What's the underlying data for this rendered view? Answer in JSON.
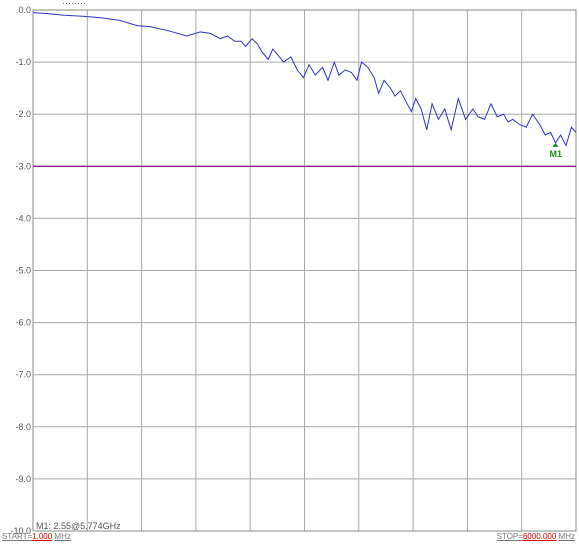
{
  "chart_data": {
    "type": "line",
    "title": "",
    "xlabel": "",
    "ylabel": "",
    "x_range_mhz": [
      1.0,
      6000.0
    ],
    "ylim": [
      -10.0,
      0.0
    ],
    "y_ticks": [
      "0.0",
      "-1.0",
      "-2.0",
      "-3.0",
      "-4.0",
      "-5.0",
      "-6.0",
      "-7.0",
      "-8.0",
      "-9.0",
      "-10.0"
    ],
    "x_gridlines": 11,
    "grid": true,
    "series": [
      {
        "color": "#3030c8",
        "x": [
          1,
          160,
          350,
          550,
          750,
          960,
          1150,
          1300,
          1500,
          1700,
          1850,
          1960,
          2070,
          2150,
          2230,
          2300,
          2350,
          2420,
          2480,
          2530,
          2600,
          2650,
          2700,
          2770,
          2850,
          2920,
          2990,
          3050,
          3120,
          3200,
          3260,
          3330,
          3380,
          3450,
          3520,
          3580,
          3630,
          3700,
          3770,
          3820,
          3880,
          3950,
          4000,
          4060,
          4120,
          4180,
          4230,
          4290,
          4350,
          4410,
          4480,
          4550,
          4620,
          4700,
          4780,
          4860,
          4920,
          4990,
          5060,
          5130,
          5200,
          5250,
          5300,
          5380,
          5450,
          5520,
          5600,
          5660,
          5720,
          5774,
          5830,
          5890,
          5950,
          6000
        ],
        "y": [
          -0.05,
          -0.07,
          -0.1,
          -0.12,
          -0.15,
          -0.2,
          -0.3,
          -0.32,
          -0.4,
          -0.5,
          -0.42,
          -0.45,
          -0.55,
          -0.5,
          -0.6,
          -0.6,
          -0.7,
          -0.55,
          -0.65,
          -0.8,
          -0.95,
          -0.75,
          -0.85,
          -1.0,
          -0.9,
          -1.15,
          -1.3,
          -1.05,
          -1.25,
          -1.1,
          -1.35,
          -1.0,
          -1.25,
          -1.15,
          -1.2,
          -1.35,
          -1.0,
          -1.1,
          -1.3,
          -1.6,
          -1.35,
          -1.5,
          -1.65,
          -1.55,
          -1.75,
          -1.95,
          -1.7,
          -1.9,
          -2.3,
          -1.8,
          -2.1,
          -1.9,
          -2.3,
          -1.7,
          -2.1,
          -1.9,
          -2.05,
          -2.1,
          -1.8,
          -2.05,
          -2.0,
          -2.15,
          -2.1,
          -2.2,
          -2.25,
          -2.0,
          -2.2,
          -2.4,
          -2.35,
          -2.55,
          -2.4,
          -2.6,
          -2.25,
          -2.35
        ]
      }
    ],
    "limit_line": {
      "y": -3.0,
      "color": "#800080"
    },
    "marker": {
      "label": "M1",
      "x": 5774,
      "y": -2.55,
      "color": "#1a8a1a"
    },
    "top_readout": "········"
  },
  "readout": "M1: 2.55@5.774GHz",
  "footer": {
    "start_label": "START=",
    "start_value": "1.000",
    "start_unit": "MHz",
    "stop_label": "STOP=",
    "stop_value": "6000.000",
    "stop_unit": "MHz"
  }
}
